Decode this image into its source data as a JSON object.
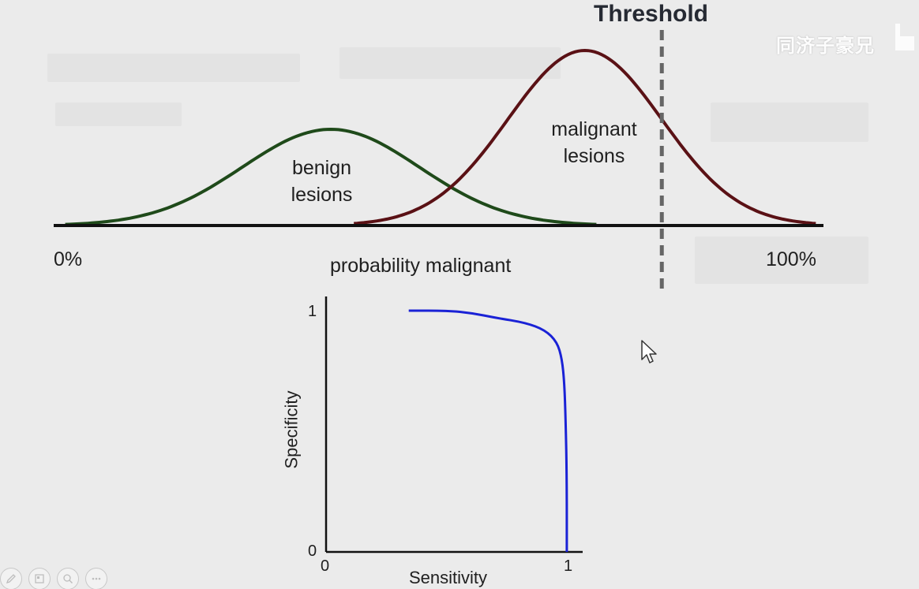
{
  "slide": {
    "threshold_label": "Threshold",
    "benign_label_line1": "benign",
    "benign_label_line2": "lesions",
    "malignant_label_line1": "malignant",
    "malignant_label_line2": "lesions",
    "axis_left": "0%",
    "axis_center": "probability malignant",
    "axis_right": "100%",
    "watermark": "同济子豪兄"
  },
  "colors": {
    "benign_curve": "#1f4a1a",
    "malignant_curve": "#5a1115",
    "threshold_line": "#666666",
    "roc_curve": "#1a22d6",
    "axis": "#111111"
  },
  "chart_data": [
    {
      "type": "area",
      "series": [
        {
          "name": "benign lesions",
          "mean": 0.36,
          "std": 0.115
        },
        {
          "name": "malignant lesions",
          "mean": 0.69,
          "std": 0.1
        }
      ],
      "threshold": 0.79,
      "xlim": [
        0,
        1
      ]
    },
    {
      "type": "line",
      "xlabel": "Sensitivity",
      "ylabel": "Specificity",
      "xlim": [
        0,
        1
      ],
      "ylim": [
        0,
        1
      ],
      "x_ticks": [
        "0",
        "1"
      ],
      "y_ticks": [
        "0",
        "1"
      ],
      "points": [
        [
          0.34,
          1.0
        ],
        [
          0.5,
          1.0
        ],
        [
          0.6,
          0.99
        ],
        [
          0.7,
          0.97
        ],
        [
          0.82,
          0.95
        ],
        [
          0.9,
          0.92
        ],
        [
          0.95,
          0.87
        ],
        [
          0.97,
          0.8
        ],
        [
          0.98,
          0.7
        ],
        [
          0.985,
          0.55
        ],
        [
          0.99,
          0.3
        ],
        [
          0.99,
          0.0
        ]
      ]
    }
  ],
  "toolbar": {
    "buttons": [
      "pen-icon",
      "slides-icon",
      "zoom-icon",
      "more-icon"
    ]
  }
}
